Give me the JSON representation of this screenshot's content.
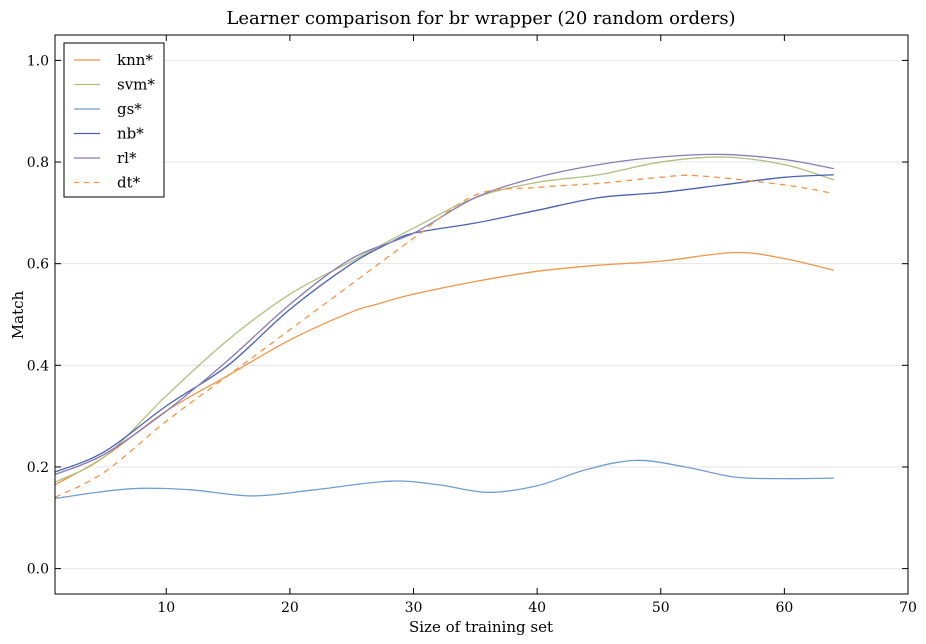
{
  "chart_data": {
    "type": "line",
    "title": "Learner comparison for br wrapper (20 random orders)",
    "xlabel": "Size of training set",
    "ylabel": "Match",
    "xlim": [
      1,
      70
    ],
    "ylim": [
      -0.05,
      1.05
    ],
    "xticks": [
      10,
      20,
      30,
      40,
      50,
      60,
      70
    ],
    "yticks": [
      0.0,
      0.2,
      0.4,
      0.6,
      0.8,
      1.0
    ],
    "ytick_labels": [
      "0.0",
      "0.2",
      "0.4",
      "0.6",
      "0.8",
      "1.0"
    ],
    "grid": "horizontal",
    "legend_placement": "top-left",
    "series": [
      {
        "name": "knn*",
        "color": "#f0954a",
        "dash": false,
        "x": [
          1,
          5,
          10,
          15,
          20,
          25,
          27,
          30,
          35,
          40,
          45,
          50,
          56,
          60,
          64
        ],
        "y": [
          0.165,
          0.22,
          0.31,
          0.38,
          0.45,
          0.505,
          0.52,
          0.54,
          0.565,
          0.585,
          0.597,
          0.605,
          0.622,
          0.61,
          0.587
        ]
      },
      {
        "name": "svm*",
        "color": "#adc17f",
        "dash": false,
        "x": [
          1,
          5,
          10,
          15,
          20,
          25,
          30,
          35,
          40,
          45,
          50,
          55,
          60,
          64
        ],
        "y": [
          0.17,
          0.22,
          0.34,
          0.45,
          0.54,
          0.605,
          0.67,
          0.73,
          0.76,
          0.775,
          0.8,
          0.81,
          0.795,
          0.765
        ]
      },
      {
        "name": "gs*",
        "color": "#6f9fd0",
        "dash": false,
        "x": [
          1,
          5,
          8,
          12,
          17,
          22,
          28,
          32,
          36,
          40,
          44,
          48,
          52,
          56,
          60,
          64
        ],
        "y": [
          0.138,
          0.152,
          0.158,
          0.155,
          0.143,
          0.155,
          0.172,
          0.165,
          0.15,
          0.163,
          0.195,
          0.213,
          0.2,
          0.18,
          0.177,
          0.178
        ]
      },
      {
        "name": "nb*",
        "color": "#4a62b0",
        "dash": false,
        "x": [
          1,
          5,
          10,
          15,
          20,
          25,
          28,
          30,
          35,
          40,
          45,
          50,
          55,
          60,
          64
        ],
        "y": [
          0.19,
          0.23,
          0.32,
          0.4,
          0.51,
          0.6,
          0.64,
          0.66,
          0.68,
          0.705,
          0.73,
          0.74,
          0.755,
          0.77,
          0.775
        ]
      },
      {
        "name": "rl*",
        "color": "#8a7bb8",
        "dash": false,
        "x": [
          1,
          5,
          10,
          15,
          20,
          25,
          30,
          35,
          40,
          45,
          50,
          55,
          60,
          64
        ],
        "y": [
          0.185,
          0.225,
          0.31,
          0.41,
          0.52,
          0.61,
          0.66,
          0.73,
          0.77,
          0.795,
          0.81,
          0.815,
          0.805,
          0.787
        ]
      },
      {
        "name": "dt*",
        "color": "#f0954a",
        "dash": true,
        "x": [
          1,
          5,
          10,
          15,
          20,
          25,
          30,
          35,
          40,
          45,
          50,
          53,
          60,
          64
        ],
        "y": [
          0.14,
          0.19,
          0.29,
          0.38,
          0.47,
          0.56,
          0.65,
          0.735,
          0.75,
          0.758,
          0.77,
          0.773,
          0.755,
          0.738
        ]
      }
    ]
  }
}
